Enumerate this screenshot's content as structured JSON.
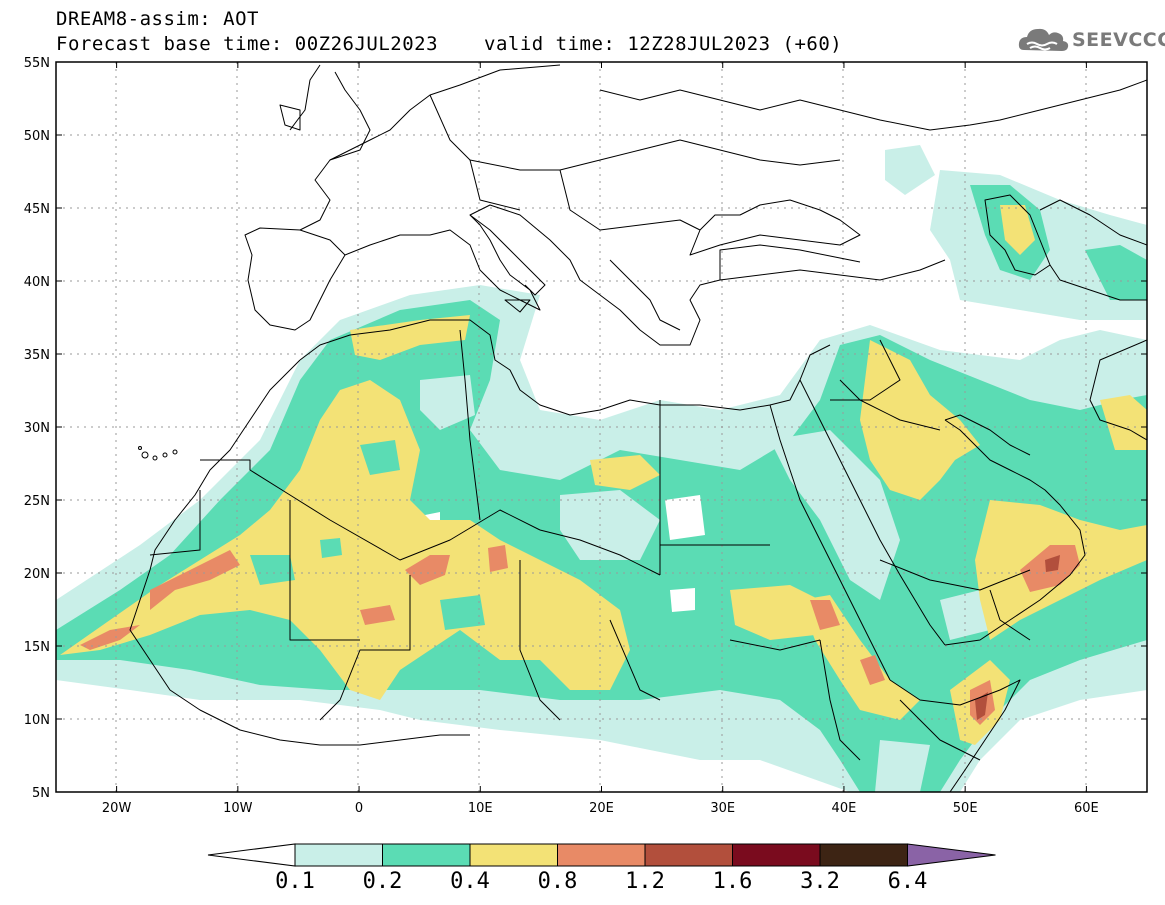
{
  "header": {
    "title_line1": "DREAM8-assim: AOT",
    "base_time": "Forecast base time: 00Z26JUL2023",
    "valid_time": "valid time: 12Z28JUL2023 (+60)",
    "logo_text": "SEEVCCC"
  },
  "map": {
    "lat_labels": [
      "55N",
      "50N",
      "45N",
      "40N",
      "35N",
      "30N",
      "25N",
      "20N",
      "15N",
      "10N",
      "5N"
    ],
    "lon_labels": [
      "20W",
      "10W",
      "0",
      "10E",
      "20E",
      "30E",
      "40E",
      "50E",
      "60E"
    ],
    "ocean_color": "#ffffff",
    "border_color": "#000000"
  },
  "colorbar": {
    "labels": [
      "0.1",
      "0.2",
      "0.4",
      "0.8",
      "1.2",
      "1.6",
      "3.2",
      "6.4"
    ],
    "colors": [
      "#ffffff",
      "#c9efe8",
      "#5bdcb4",
      "#f3e276",
      "#e88a66",
      "#b24f3c",
      "#7a0b1e",
      "#3d2414",
      "#8a63a6"
    ]
  }
}
